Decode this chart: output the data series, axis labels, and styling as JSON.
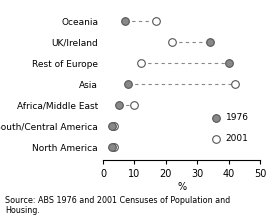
{
  "categories": [
    "Oceania",
    "UK/Ireland",
    "Rest of Europe",
    "Asia",
    "Africa/Middle East",
    "South/Central America",
    "North America"
  ],
  "values_1976": [
    7,
    34,
    40,
    8,
    5,
    3,
    3
  ],
  "values_2001": [
    17,
    22,
    12,
    42,
    10,
    3.5,
    3.5
  ],
  "xlim": [
    0,
    50
  ],
  "xticks": [
    0,
    10,
    20,
    30,
    40,
    50
  ],
  "xlabel": "%",
  "color_1976": "#888888",
  "color_2001": "#ffffff",
  "edge_color": "#555555",
  "line_color": "#888888",
  "marker_size": 5.5,
  "legend_1976": "1976",
  "legend_2001": "2001",
  "source_text": "Source: ABS 1976 and 2001 Censuses of Population and\nHousing.",
  "fig_width": 2.71,
  "fig_height": 2.22,
  "dpi": 100
}
